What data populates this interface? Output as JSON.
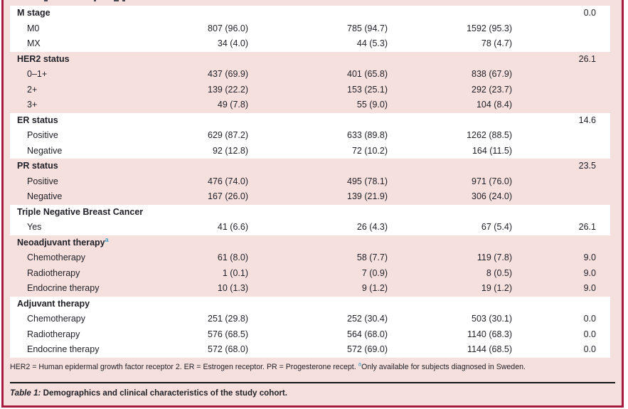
{
  "colors": {
    "frame_border": "#a81b40",
    "band_pink": "#f5e0dd",
    "band_white": "#ffffff",
    "text": "#1f1f27",
    "superscript": "#3e9fc6",
    "rule": "#141414"
  },
  "table": {
    "rows": [
      {
        "type": "group",
        "bg": "white",
        "label": "M stage",
        "c4": "0.0"
      },
      {
        "type": "item",
        "bg": "white",
        "label": "M0",
        "c1": "807 (96.0)",
        "c2": "785 (94.7)",
        "c3": "1592 (95.3)"
      },
      {
        "type": "item",
        "bg": "white",
        "label": "MX",
        "c1": "34 (4.0)",
        "c2": "44 (5.3)",
        "c3": "78 (4.7)"
      },
      {
        "type": "group",
        "bg": "pink",
        "label": "HER2 status",
        "c4": "26.1"
      },
      {
        "type": "item",
        "bg": "pink",
        "label": "0–1+",
        "c1": "437 (69.9)",
        "c2": "401 (65.8)",
        "c3": "838 (67.9)"
      },
      {
        "type": "item",
        "bg": "pink",
        "label": "2+",
        "c1": "139 (22.2)",
        "c2": "153 (25.1)",
        "c3": "292 (23.7)"
      },
      {
        "type": "item",
        "bg": "pink",
        "label": "3+",
        "c1": "49 (7.8)",
        "c2": "55 (9.0)",
        "c3": "104 (8.4)"
      },
      {
        "type": "group",
        "bg": "white",
        "label": "ER status",
        "c4": "14.6"
      },
      {
        "type": "item",
        "bg": "white",
        "label": "Positive",
        "c1": "629 (87.2)",
        "c2": "633 (89.8)",
        "c3": "1262 (88.5)"
      },
      {
        "type": "item",
        "bg": "white",
        "label": "Negative",
        "c1": "92 (12.8)",
        "c2": "72 (10.2)",
        "c3": "164 (11.5)"
      },
      {
        "type": "group",
        "bg": "pink",
        "label": "PR status",
        "c4": "23.5"
      },
      {
        "type": "item",
        "bg": "pink",
        "label": "Positive",
        "c1": "476 (74.0)",
        "c2": "495 (78.1)",
        "c3": "971 (76.0)"
      },
      {
        "type": "item",
        "bg": "pink",
        "label": "Negative",
        "c1": "167 (26.0)",
        "c2": "139 (21.9)",
        "c3": "306 (24.0)"
      },
      {
        "type": "group",
        "bg": "white",
        "label": "Triple Negative Breast Cancer"
      },
      {
        "type": "item",
        "bg": "white",
        "label": "Yes",
        "c1": "41 (6.6)",
        "c2": "26 (4.3)",
        "c3": "67 (5.4)",
        "c4": "26.1"
      },
      {
        "type": "group",
        "bg": "pink",
        "label": "Neoadjuvant therapy",
        "sup": "a"
      },
      {
        "type": "item",
        "bg": "pink",
        "label": "Chemotherapy",
        "c1": "61 (8.0)",
        "c2": "58 (7.7)",
        "c3": "119 (7.8)",
        "c4": "9.0"
      },
      {
        "type": "item",
        "bg": "pink",
        "label": "Radiotherapy",
        "c1": "1 (0.1)",
        "c2": "7 (0.9)",
        "c3": "8 (0.5)",
        "c4": "9.0"
      },
      {
        "type": "item",
        "bg": "pink",
        "label": "Endocrine therapy",
        "c1": "10 (1.3)",
        "c2": "9 (1.2)",
        "c3": "19 (1.2)",
        "c4": "9.0"
      },
      {
        "type": "group",
        "bg": "white",
        "label": "Adjuvant therapy"
      },
      {
        "type": "item",
        "bg": "white",
        "label": "Chemotherapy",
        "c1": "251 (29.8)",
        "c2": "252 (30.4)",
        "c3": "503 (30.1)",
        "c4": "0.0"
      },
      {
        "type": "item",
        "bg": "white",
        "label": "Radiotherapy",
        "c1": "576 (68.5)",
        "c2": "564 (68.0)",
        "c3": "1140 (68.3)",
        "c4": "0.0"
      },
      {
        "type": "item",
        "bg": "white",
        "label": "Endocrine therapy",
        "c1": "572 (68.0)",
        "c2": "572 (69.0)",
        "c3": "1144 (68.5)",
        "c4": "0.0"
      }
    ],
    "footnote": {
      "part1": "HER2 = Human epidermal growth factor receptor 2. ER = Estrogen receptor. PR = Progesterone recept. ",
      "sup": "a",
      "part2": "Only available for subjects diagnosed in Sweden."
    },
    "caption": {
      "prefix": "Table 1:",
      "text": " Demographics and clinical characteristics of the study cohort."
    }
  }
}
